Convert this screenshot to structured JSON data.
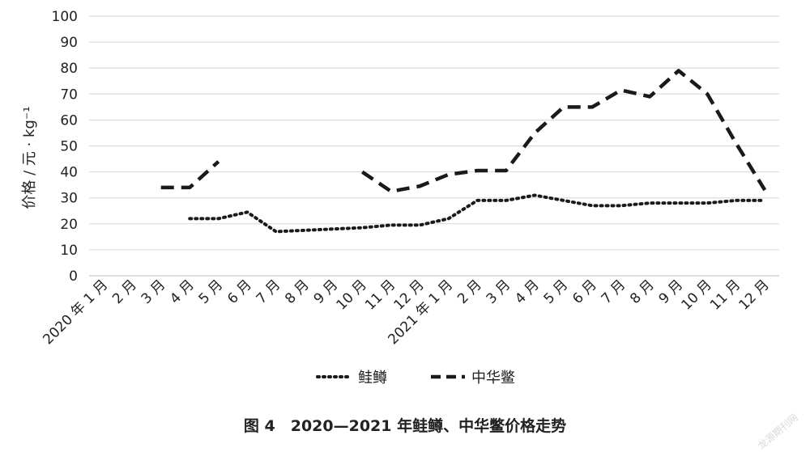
{
  "chart_data": {
    "type": "line",
    "ylabel": "价格 / 元 · kg⁻¹",
    "ylim": [
      0,
      100
    ],
    "yticks": [
      0,
      10,
      20,
      30,
      40,
      50,
      60,
      70,
      80,
      90,
      100
    ],
    "grid": "horizontal",
    "legend_position": "bottom",
    "categories": [
      "2020 年 1 月",
      "2 月",
      "3 月",
      "4 月",
      "5 月",
      "6 月",
      "7 月",
      "8 月",
      "9 月",
      "10 月",
      "11 月",
      "12 月",
      "2021 年 1 月",
      "2 月",
      "3 月",
      "4 月",
      "5 月",
      "6 月",
      "7 月",
      "8 月",
      "9 月",
      "10 月",
      "11 月",
      "12 月"
    ],
    "series": [
      {
        "name": "鲑鳟",
        "style": "dotted",
        "color": "#1a1a1a",
        "values": [
          null,
          null,
          null,
          22,
          22,
          24.5,
          17,
          17.5,
          18,
          18.5,
          19.5,
          19.5,
          22,
          29,
          29,
          31,
          29,
          27,
          27,
          28,
          28,
          28,
          29,
          29
        ]
      },
      {
        "name": "中华鳖",
        "style": "dashed",
        "color": "#1a1a1a",
        "values": [
          null,
          null,
          34,
          34,
          44,
          null,
          null,
          null,
          null,
          40,
          32.5,
          34.5,
          39,
          40.5,
          40.5,
          55,
          65,
          65,
          71.5,
          69,
          79,
          70,
          51,
          33
        ]
      }
    ]
  },
  "caption": "图 4　2020—2021 年鲑鳟、中华鳖价格走势",
  "watermark": "龙源期刊网"
}
